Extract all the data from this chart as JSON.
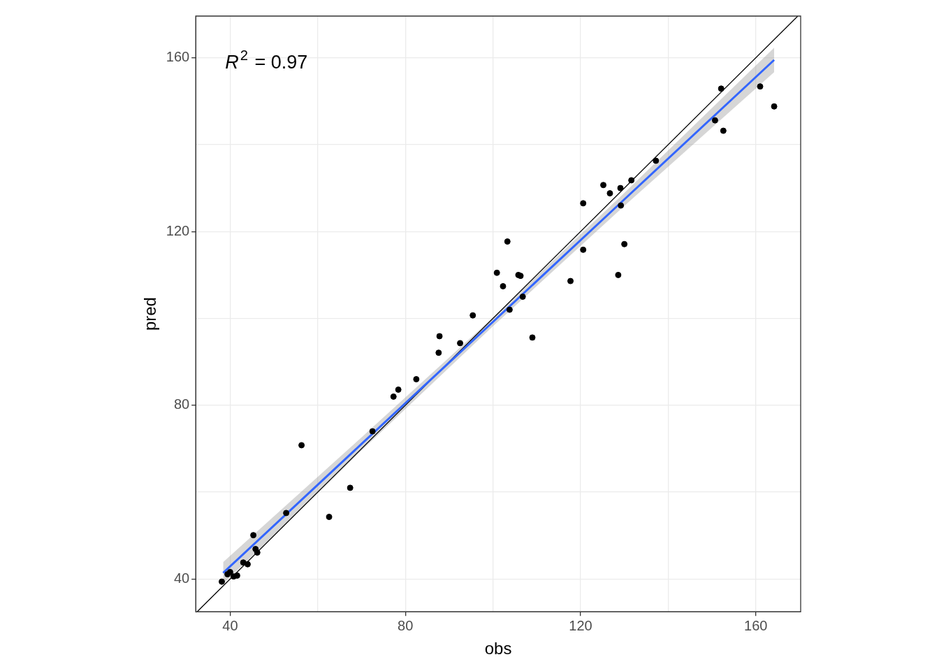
{
  "chart_data": {
    "type": "scatter",
    "xlabel": "obs",
    "ylabel": "pred",
    "annotations": [
      "R$^{2}$ = 0.97"
    ],
    "xlim": [
      32.15,
      170.25
    ],
    "ylim": [
      32.47,
      169.6
    ],
    "xticks": [
      40,
      {
        "value": 60,
        "label": null
      },
      80,
      {
        "value": 100,
        "label": null
      },
      120,
      {
        "value": 140,
        "label": null
      },
      160
    ],
    "yticks": [
      40,
      {
        "value": 60,
        "label": null
      },
      80,
      {
        "value": 100,
        "label": null
      },
      120,
      {
        "value": 140,
        "label": null
      },
      160
    ],
    "grid": true,
    "legend": false,
    "series": [
      {
        "marker": "circle",
        "color": "#000000",
        "x": [
          38.1,
          39.4,
          40,
          40.8,
          41.6,
          43.0,
          44.0,
          45.3,
          45.8,
          46.2,
          52.8,
          56.3,
          62.6,
          67.4,
          72.5,
          77.3,
          78.4,
          82.5,
          87.6,
          87.8,
          92.5,
          95.4,
          100.9,
          102.3,
          103.3,
          103.8,
          105.8,
          106.3,
          106.8,
          109.0,
          117.7,
          120.6,
          120.6,
          125.2,
          126.7,
          128.6,
          129.1,
          129.2,
          130.0,
          131.6,
          137.2,
          150.7,
          152.1,
          152.6,
          161.0,
          164.2
        ],
        "values": [
          39.4,
          41.1,
          41.6,
          40.6,
          40.8,
          43.8,
          43.4,
          50.1,
          46.9,
          46.1,
          55.2,
          70.8,
          54.3,
          61.0,
          74.0,
          82.0,
          83.6,
          86.0,
          92.1,
          95.9,
          94.3,
          100.7,
          110.5,
          107.4,
          117.7,
          102.0,
          110.0,
          109.8,
          105.0,
          95.6,
          108.6,
          126.5,
          115.8,
          130.7,
          128.8,
          110.0,
          130.0,
          126.0,
          117.1,
          131.8,
          136.3,
          145.6,
          152.9,
          143.2,
          153.4,
          148.8
        ]
      },
      {
        "type": "line",
        "marker": "none",
        "color": "#3366ff",
        "x": [
          38.4,
          70,
          100,
          130,
          164.2
        ],
        "values": [
          41.4,
          71.1,
          99.2,
          127.4,
          159.5
        ],
        "lower": [
          38.9,
          69.6,
          98.2,
          125.9,
          156.7
        ],
        "upper": [
          43.9,
          72.6,
          100.2,
          128.9,
          162.3
        ]
      },
      {
        "type": "line",
        "marker": "none",
        "color": "#000000",
        "x": [
          32.5,
          169.6
        ],
        "values": [
          32.5,
          169.6
        ]
      }
    ]
  }
}
